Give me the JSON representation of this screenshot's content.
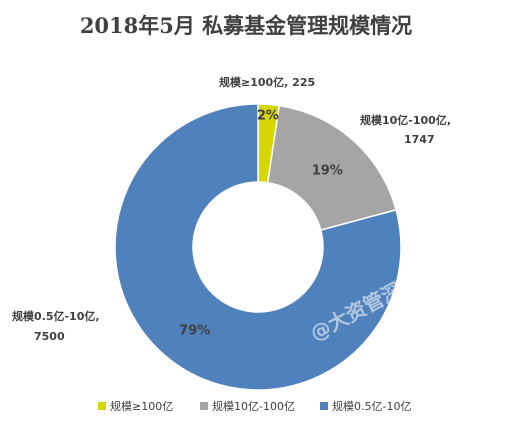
{
  "chart_data": {
    "type": "pie",
    "title": "2018年5月 私募基金管理规模情况",
    "series": [
      {
        "name": "规模≥100亿",
        "value": 225,
        "percent_label": "2%",
        "color": "#d6d600",
        "data_label_lines": [
          "规模≥100亿, 225"
        ]
      },
      {
        "name": "规模10亿-100亿",
        "value": 1747,
        "percent_label": "19%",
        "color": "#a5a5a5",
        "data_label_lines": [
          "规模10亿-100亿,",
          "1747"
        ]
      },
      {
        "name": "规模0.5亿-10亿",
        "value": 7500,
        "percent_label": "79%",
        "color": "#4f81bd",
        "data_label_lines": [
          "规模0.5亿-10亿,",
          "7500"
        ]
      }
    ],
    "legend_position": "bottom",
    "donut": true
  },
  "watermark": "@大资管深度"
}
